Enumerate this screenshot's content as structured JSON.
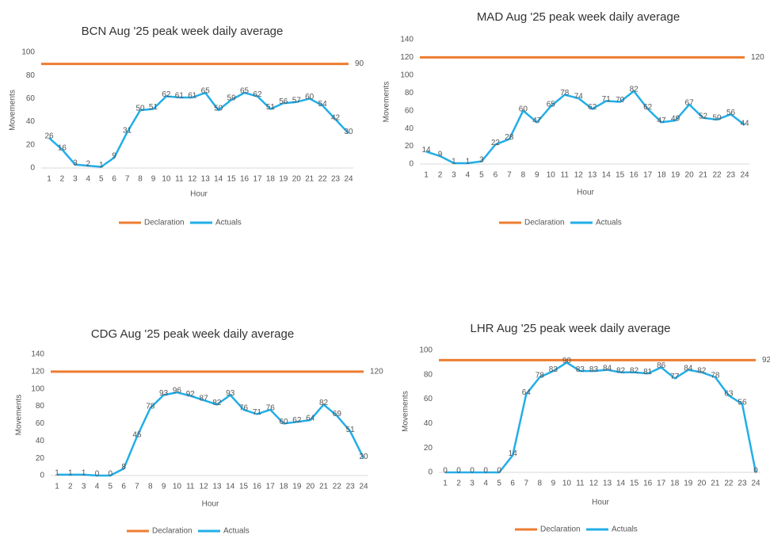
{
  "chart_data": [
    {
      "type": "line",
      "title": "BCN Aug '25 peak week daily average",
      "x_label": "Hour",
      "y_label": "Movements",
      "categories": [
        1,
        2,
        3,
        4,
        5,
        6,
        7,
        8,
        9,
        10,
        11,
        12,
        13,
        14,
        15,
        16,
        17,
        18,
        19,
        20,
        21,
        22,
        23,
        24
      ],
      "ylim": [
        0,
        100
      ],
      "yticks": [
        0,
        20,
        40,
        60,
        80,
        100
      ],
      "series": [
        {
          "name": "Declaration",
          "color": "#ed7d31",
          "values": [
            90,
            90,
            90,
            90,
            90,
            90,
            90,
            90,
            90,
            90,
            90,
            90,
            90,
            90,
            90,
            90,
            90,
            90,
            90,
            90,
            90,
            90,
            90,
            90
          ]
        },
        {
          "name": "Actuals",
          "color": "#22aee8",
          "values": [
            26,
            16,
            3,
            2,
            1,
            9,
            31,
            50,
            51,
            62,
            61,
            61,
            65,
            50,
            59,
            65,
            62,
            51,
            56,
            57,
            60,
            54,
            42,
            30
          ]
        }
      ]
    },
    {
      "type": "line",
      "title": "MAD Aug '25 peak week daily average",
      "x_label": "Hour",
      "y_label": "Movements",
      "categories": [
        1,
        2,
        3,
        4,
        5,
        6,
        7,
        8,
        9,
        10,
        11,
        12,
        13,
        14,
        15,
        16,
        17,
        18,
        19,
        20,
        21,
        22,
        23,
        24
      ],
      "ylim": [
        0,
        140
      ],
      "yticks": [
        0,
        20,
        40,
        60,
        80,
        100,
        120,
        140
      ],
      "series": [
        {
          "name": "Declaration",
          "color": "#ed7d31",
          "values": [
            120,
            120,
            120,
            120,
            120,
            120,
            120,
            120,
            120,
            120,
            120,
            120,
            120,
            120,
            120,
            120,
            120,
            120,
            120,
            120,
            120,
            120,
            120,
            120
          ]
        },
        {
          "name": "Actuals",
          "color": "#22aee8",
          "values": [
            14,
            9,
            1,
            1,
            3,
            22,
            28,
            60,
            47,
            65,
            78,
            74,
            62,
            71,
            70,
            82,
            62,
            47,
            49,
            67,
            52,
            50,
            56,
            44
          ]
        }
      ]
    },
    {
      "type": "line",
      "title": "CDG Aug '25 peak week daily average",
      "x_label": "Hour",
      "y_label": "Movements",
      "categories": [
        1,
        2,
        3,
        4,
        5,
        6,
        7,
        8,
        9,
        10,
        11,
        12,
        13,
        14,
        15,
        16,
        17,
        18,
        19,
        20,
        21,
        22,
        23,
        24
      ],
      "ylim": [
        0,
        140
      ],
      "yticks": [
        0,
        20,
        40,
        60,
        80,
        100,
        120,
        140
      ],
      "series": [
        {
          "name": "Declaration",
          "color": "#ed7d31",
          "values": [
            120,
            120,
            120,
            120,
            120,
            120,
            120,
            120,
            120,
            120,
            120,
            120,
            120,
            120,
            120,
            120,
            120,
            120,
            120,
            120,
            120,
            120,
            120,
            120
          ]
        },
        {
          "name": "Actuals",
          "color": "#22aee8",
          "values": [
            1,
            1,
            1,
            0,
            0,
            8,
            45,
            78,
            93,
            96,
            92,
            87,
            82,
            93,
            76,
            71,
            76,
            60,
            62,
            64,
            82,
            69,
            51,
            20
          ]
        }
      ]
    },
    {
      "type": "line",
      "title": "LHR Aug '25 peak week daily average",
      "x_label": "Hour",
      "y_label": "Movements",
      "categories": [
        1,
        2,
        3,
        4,
        5,
        6,
        7,
        8,
        9,
        10,
        11,
        12,
        13,
        14,
        15,
        16,
        17,
        18,
        19,
        20,
        21,
        22,
        23,
        24
      ],
      "ylim": [
        0,
        100
      ],
      "yticks": [
        0,
        20,
        40,
        60,
        80,
        100
      ],
      "series": [
        {
          "name": "Declaration",
          "color": "#ed7d31",
          "values": [
            92,
            92,
            92,
            92,
            92,
            92,
            92,
            92,
            92,
            92,
            92,
            92,
            92,
            92,
            92,
            92,
            92,
            92,
            92,
            92,
            92,
            92,
            92,
            92
          ]
        },
        {
          "name": "Actuals",
          "color": "#22aee8",
          "values": [
            0,
            0,
            0,
            0,
            0,
            14,
            64,
            78,
            83,
            90,
            83,
            83,
            84,
            82,
            82,
            81,
            86,
            77,
            84,
            82,
            78,
            63,
            56,
            0
          ]
        }
      ]
    }
  ]
}
